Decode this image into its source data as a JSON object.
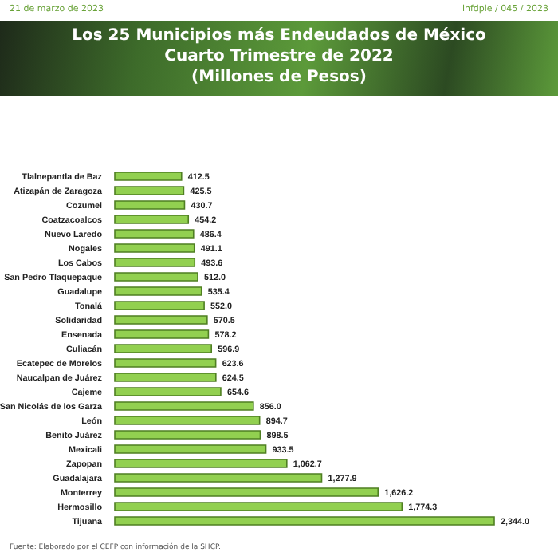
{
  "chart_data": {
    "type": "bar",
    "orientation": "horizontal",
    "title": "Los 25 Municipios más Endeudados de México",
    "subtitle": "Cuarto Trimestre de 2022\n(Millones de Pesos)",
    "categories": [
      "Tlalnepantla de Baz",
      "Atizapán de Zaragoza",
      "Cozumel",
      "Coatzacoalcos",
      "Nuevo Laredo",
      "Nogales",
      "Los Cabos",
      "San Pedro Tlaquepaque",
      "Guadalupe",
      "Tonalá",
      "Solidaridad",
      "Ensenada",
      "Culiacán",
      "Ecatepec de Morelos",
      "Naucalpan de Juárez",
      "Cajeme",
      "San Nicolás de los Garza",
      "León",
      "Benito Juárez",
      "Mexicali",
      "Zapopan",
      "Guadalajara",
      "Monterrey",
      "Hermosillo",
      "Tijuana"
    ],
    "values": [
      412.5,
      425.5,
      430.7,
      454.2,
      486.4,
      491.1,
      493.6,
      512.0,
      535.4,
      552.0,
      570.5,
      578.2,
      596.9,
      623.6,
      624.5,
      654.6,
      856.0,
      894.7,
      898.5,
      933.5,
      1062.7,
      1277.9,
      1626.2,
      1774.3,
      2344.0
    ],
    "value_labels": [
      "412.5",
      "425.5",
      "430.7",
      "454.2",
      "486.4",
      "491.1",
      "493.6",
      "512.0",
      "535.4",
      "552.0",
      "570.5",
      "578.2",
      "596.9",
      "623.6",
      "624.5",
      "654.6",
      "856.0",
      "894.7",
      "898.5",
      "933.5",
      "1,062.7",
      "1,277.9",
      "1,626.2",
      "1,774.3",
      "2,344.0"
    ],
    "color": "#92d050",
    "annotations": [
      "21 de marzo de 2023",
      "infdpie / 045 / 2023",
      "Fuente: Elaborado por el CEFP con información de la SHCP."
    ]
  }
}
